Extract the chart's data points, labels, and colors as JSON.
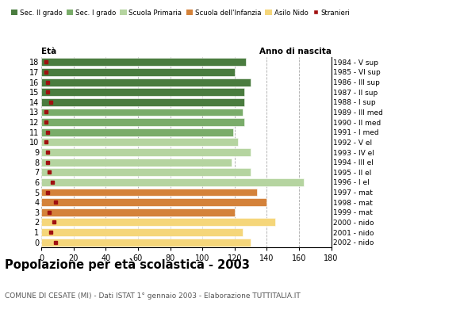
{
  "ages": [
    18,
    17,
    16,
    15,
    14,
    13,
    12,
    11,
    10,
    9,
    8,
    7,
    6,
    5,
    4,
    3,
    2,
    1,
    0
  ],
  "birth_years": [
    "1984 - V sup",
    "1985 - VI sup",
    "1986 - III sup",
    "1987 - II sup",
    "1988 - I sup",
    "1989 - III med",
    "1990 - II med",
    "1991 - I med",
    "1992 - V el",
    "1993 - IV el",
    "1994 - III el",
    "1995 - II el",
    "1996 - I el",
    "1997 - mat",
    "1998 - mat",
    "1999 - mat",
    "2000 - nido",
    "2001 - nido",
    "2002 - nido"
  ],
  "bar_values": [
    127,
    120,
    130,
    126,
    126,
    125,
    126,
    119,
    122,
    130,
    118,
    130,
    163,
    134,
    140,
    120,
    145,
    125,
    130
  ],
  "stranieri_values": [
    3,
    3,
    4,
    4,
    6,
    3,
    3,
    4,
    3,
    4,
    4,
    5,
    7,
    4,
    9,
    5,
    8,
    6,
    9
  ],
  "colors": {
    "Sec. II grado": "#4a7c3f",
    "Sec. I grado": "#7aac6a",
    "Scuola Primaria": "#b5d4a0",
    "Scuola dell'Infanzia": "#d4823a",
    "Asilo Nido": "#f5d67a",
    "Stranieri": "#a01010"
  },
  "bar_color_map": {
    "18": "Sec. II grado",
    "17": "Sec. II grado",
    "16": "Sec. II grado",
    "15": "Sec. II grado",
    "14": "Sec. II grado",
    "13": "Sec. I grado",
    "12": "Sec. I grado",
    "11": "Sec. I grado",
    "10": "Scuola Primaria",
    "9": "Scuola Primaria",
    "8": "Scuola Primaria",
    "7": "Scuola Primaria",
    "6": "Scuola Primaria",
    "5": "Scuola dell'Infanzia",
    "4": "Scuola dell'Infanzia",
    "3": "Scuola dell'Infanzia",
    "2": "Asilo Nido",
    "1": "Asilo Nido",
    "0": "Asilo Nido"
  },
  "title": "Popolazione per età scolastica - 2003",
  "subtitle": "COMUNE DI CESATE (MI) - Dati ISTAT 1° gennaio 2003 - Elaborazione TUTTITALIA.IT",
  "xlabel_eta": "Età",
  "xlabel_anno": "Anno di nascita",
  "xlim": [
    0,
    180
  ],
  "xticks": [
    0,
    20,
    40,
    60,
    80,
    100,
    120,
    140,
    160,
    180
  ],
  "background_color": "#ffffff",
  "grid_color": "#aaaaaa"
}
